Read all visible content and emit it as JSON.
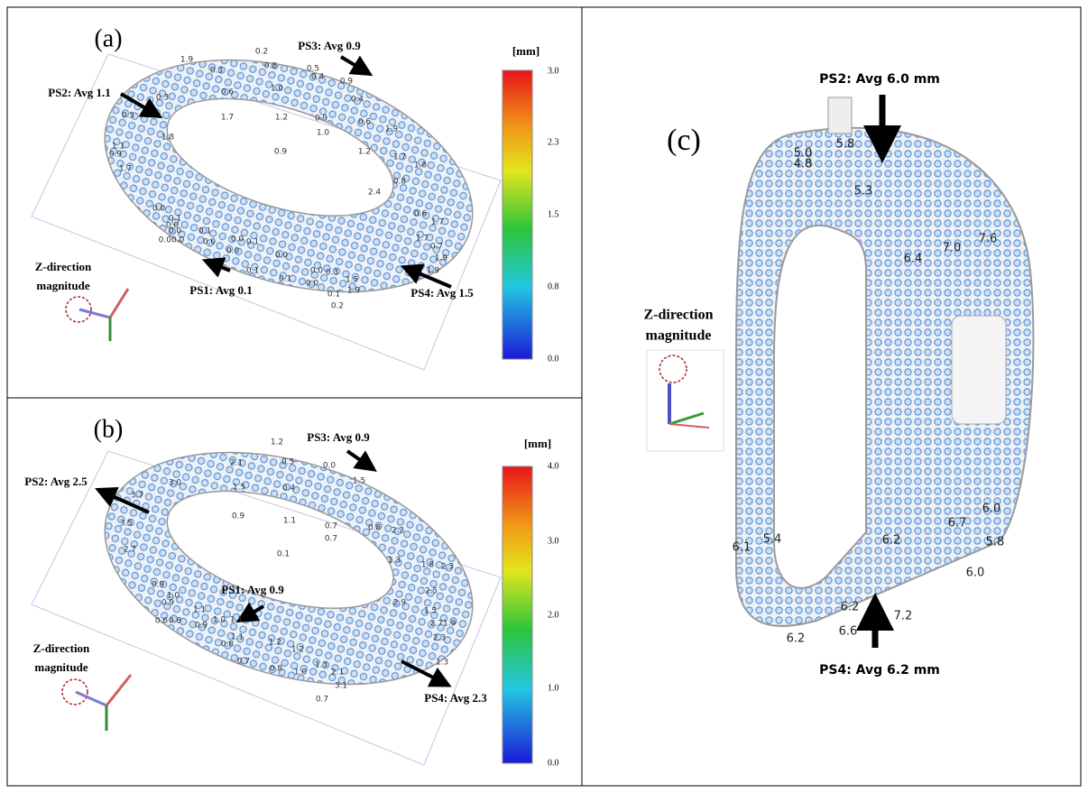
{
  "panel_a": {
    "label": "(a)",
    "annotations": [
      "PS3: Avg 0.9",
      "PS2: Avg 1.1",
      "PS1: Avg 0.1",
      "PS4: Avg 1.5"
    ],
    "axis_note": [
      "Z-direction",
      "magnitude"
    ],
    "colorbar": {
      "unit": "[mm]",
      "ticks": [
        "3.0",
        "2.3",
        "1.5",
        "0.8",
        "0.0"
      ]
    },
    "point_labels": [
      "1.9",
      "0.2",
      "0.8",
      "0.5",
      "0.4",
      "0.9",
      "0.3",
      "0.6",
      "1.0",
      "0.4",
      "0.3",
      "1.7",
      "1.2",
      "0.9",
      "1.0",
      "0.6",
      "1.9",
      "0.5",
      "1.8",
      "1.2",
      "1.1",
      "0.9",
      "1.7",
      "0.9",
      "1.7",
      "1.8",
      "0.8",
      "2.4",
      "0.0",
      "0.1",
      "0.0",
      "0.6",
      "1.7",
      "0.1",
      "0.0",
      "1.7",
      "0.0",
      "0.0",
      "0.1",
      "0.0",
      "0.7",
      "0.00.0",
      "0.0",
      "0.1",
      "1.9",
      "0.1",
      "0.0",
      "0.3",
      "1.5",
      "0.1",
      "0.0",
      "1.9",
      "1.9",
      "0.2"
    ]
  },
  "panel_b": {
    "label": "(b)",
    "annotations": [
      "PS3: Avg 0.9",
      "PS2: Avg 2.5",
      "PS1: Avg 0.9",
      "PS4: Avg 2.3"
    ],
    "axis_note": [
      "Z-direction",
      "magnitude"
    ],
    "colorbar": {
      "unit": "[mm]",
      "ticks": [
        "4.0",
        "3.0",
        "2.0",
        "1.0",
        "0.0"
      ]
    },
    "point_labels": [
      "1.2",
      "0.0",
      "3.7",
      "3.0",
      "2.1",
      "0.5",
      "1.5",
      "1.5",
      "0.4",
      "0.9",
      "1.1",
      "0.7",
      "0.7",
      "0.8",
      "2.3",
      "3.5",
      "2.7",
      "0.1",
      "1.3",
      "1.8",
      "2.3",
      "0.9",
      "1.0",
      "0.9",
      "1.1",
      "1.0",
      "1.1",
      "1.1",
      "0.6",
      "0.8",
      "0.9",
      "1.2",
      "1.2",
      "2.9",
      "2.5",
      "1.5",
      "0.8",
      "0.7",
      "0.8",
      "1.0",
      "1.3",
      "2.1",
      "2.71.9",
      "2.3",
      "3.1",
      "0.7",
      "1.3"
    ]
  },
  "panel_c": {
    "label": "(c)",
    "annotations": [
      "PS2: Avg 6.0 mm",
      "PS4: Avg 6.2 mm"
    ],
    "axis_note": [
      "Z-direction",
      "magnitude"
    ],
    "point_labels": [
      "5.8",
      "5.0",
      "4.8",
      "5.3",
      "6.4",
      "7.0",
      "7.6",
      "6.2",
      "6.7",
      "6.0",
      "5.8",
      "5.4",
      "6.1",
      "6.0",
      "6.2",
      "6.6",
      "7.2",
      "6.2"
    ]
  }
}
